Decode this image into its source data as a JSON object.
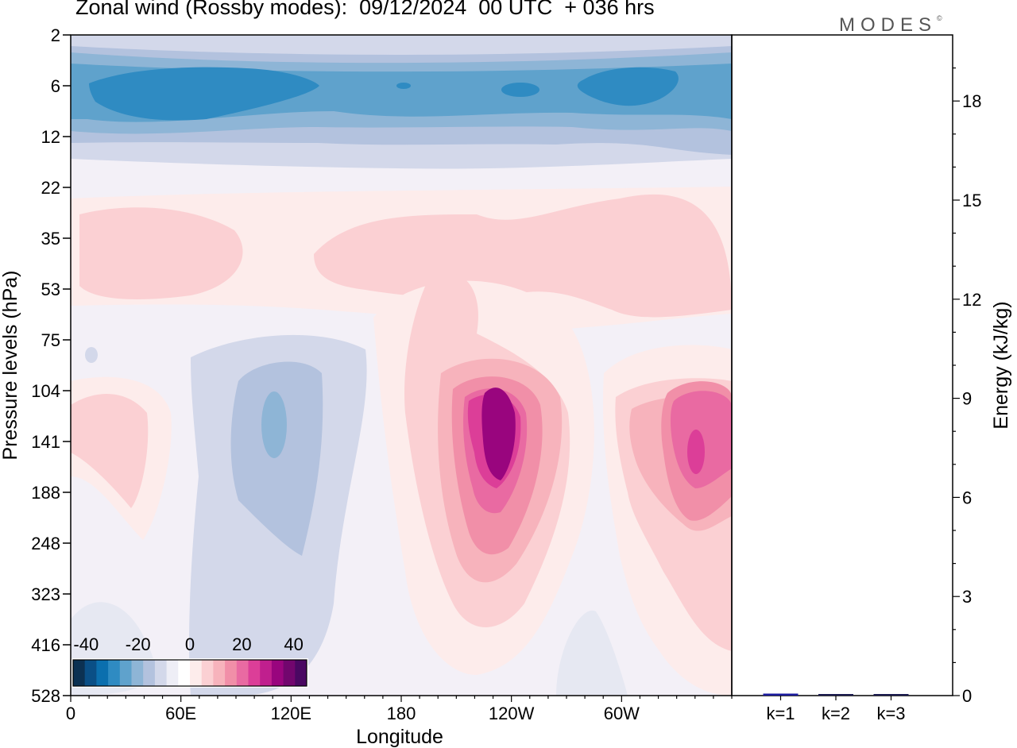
{
  "title": "Zonal wind (Rossby modes):  09/12/2024  00 UTC  + 036 hrs",
  "brand": "MODES",
  "brand_mark": "©",
  "chart_data": [
    {
      "type": "heatmap",
      "title": "Zonal wind (Rossby modes):  09/12/2024  00 UTC  + 036 hrs",
      "xlabel": "Longitude",
      "ylabel": "Pressure levels (hPa)",
      "x_ticks": [
        "0",
        "60E",
        "120E",
        "180",
        "120W",
        "60W"
      ],
      "x_tick_values": [
        0,
        60,
        120,
        180,
        240,
        300
      ],
      "xlim": [
        0,
        360
      ],
      "y_ticks": [
        "2",
        "6",
        "12",
        "22",
        "35",
        "53",
        "75",
        "104",
        "141",
        "188",
        "248",
        "323",
        "416",
        "528"
      ],
      "colorbar": {
        "ticks": [
          "-40",
          "-20",
          "0",
          "20",
          "40"
        ],
        "tick_values": [
          -40,
          -20,
          0,
          20,
          40
        ],
        "range": [
          -45,
          45
        ],
        "colors": [
          "#0c3152",
          "#0a4f86",
          "#0b6fae",
          "#2f8bc2",
          "#5fa2cc",
          "#8eb5d6",
          "#b3c2de",
          "#d3d8ea",
          "#eeeef6",
          "#ffffff",
          "#fdeceb",
          "#fbd0d3",
          "#f7b3bc",
          "#f18fa8",
          "#e96aa2",
          "#dc3e98",
          "#c01f8e",
          "#99057e",
          "#72066e",
          "#4a0862"
        ]
      }
    },
    {
      "type": "bar",
      "ylabel": "Energy (kJ/kg)",
      "categories": [
        "k=1",
        "k=2",
        "k=3"
      ],
      "values": [
        0.06,
        0.03,
        0.02
      ],
      "ylim": [
        0,
        20
      ],
      "y_ticks": [
        "0",
        "3",
        "6",
        "9",
        "12",
        "15",
        "18"
      ],
      "y_tick_values": [
        0,
        3,
        6,
        9,
        12,
        15,
        18
      ],
      "colors": [
        "#1a1a9e",
        "#1a1a4e",
        "#1a1a4e"
      ]
    }
  ]
}
